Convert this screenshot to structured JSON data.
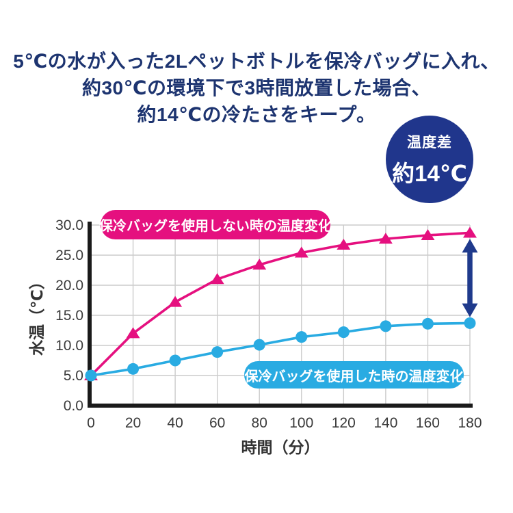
{
  "title": {
    "lines": [
      "5℃の水が入った2Lペットボトルを保冷バッグに入れ、",
      "約30℃の環境下で3時間放置した場合、",
      "約14℃の冷たさをキープ。"
    ]
  },
  "badge": {
    "label": "温度差",
    "value": "約14℃"
  },
  "chart_data": {
    "type": "line",
    "xlabel": "時間（分）",
    "ylabel": "水温（℃）",
    "xlim": [
      0,
      180
    ],
    "ylim": [
      0,
      30
    ],
    "grid": true,
    "x": [
      0,
      20,
      40,
      60,
      80,
      100,
      120,
      140,
      160,
      180
    ],
    "xticks": [
      0,
      20,
      40,
      60,
      80,
      100,
      120,
      140,
      160,
      180
    ],
    "xtick_labels": [
      "0",
      "20",
      "40",
      "60",
      "80",
      "100",
      "120",
      "140",
      "160",
      "180"
    ],
    "yticks": [
      0,
      5,
      10,
      15,
      20,
      25,
      30
    ],
    "ytick_labels": [
      "0.0",
      "5.0",
      "10.0",
      "15.0",
      "20.0",
      "25.0",
      "30.0"
    ],
    "series": [
      {
        "name": "保冷バッグを使用しない時の温度変化",
        "marker": "triangle",
        "color": "#e5107f",
        "values": [
          5.0,
          12.0,
          17.2,
          21.0,
          23.4,
          25.4,
          26.7,
          27.7,
          28.3,
          28.7
        ]
      },
      {
        "name": "保冷バッグを使用した時の温度変化",
        "marker": "circle",
        "color": "#29abe2",
        "values": [
          5.0,
          6.1,
          7.5,
          8.9,
          10.1,
          11.4,
          12.2,
          13.2,
          13.6,
          13.7
        ]
      }
    ],
    "annotation": {
      "type": "double-headed-arrow",
      "x": 180,
      "from_value": 27.7,
      "to_value": 14.7,
      "color": "#1f3a8c"
    }
  },
  "colors": {
    "navy_title": "#1d3470",
    "navy_badge": "#20368c",
    "navy_arrow": "#1f3a8c",
    "pink": "#e5107f",
    "cyan": "#29abe2",
    "grid": "#cbcbcb",
    "axis": "#1a1a1a",
    "tick_text": "#3a3a3a",
    "axis_label_text": "#333333"
  }
}
